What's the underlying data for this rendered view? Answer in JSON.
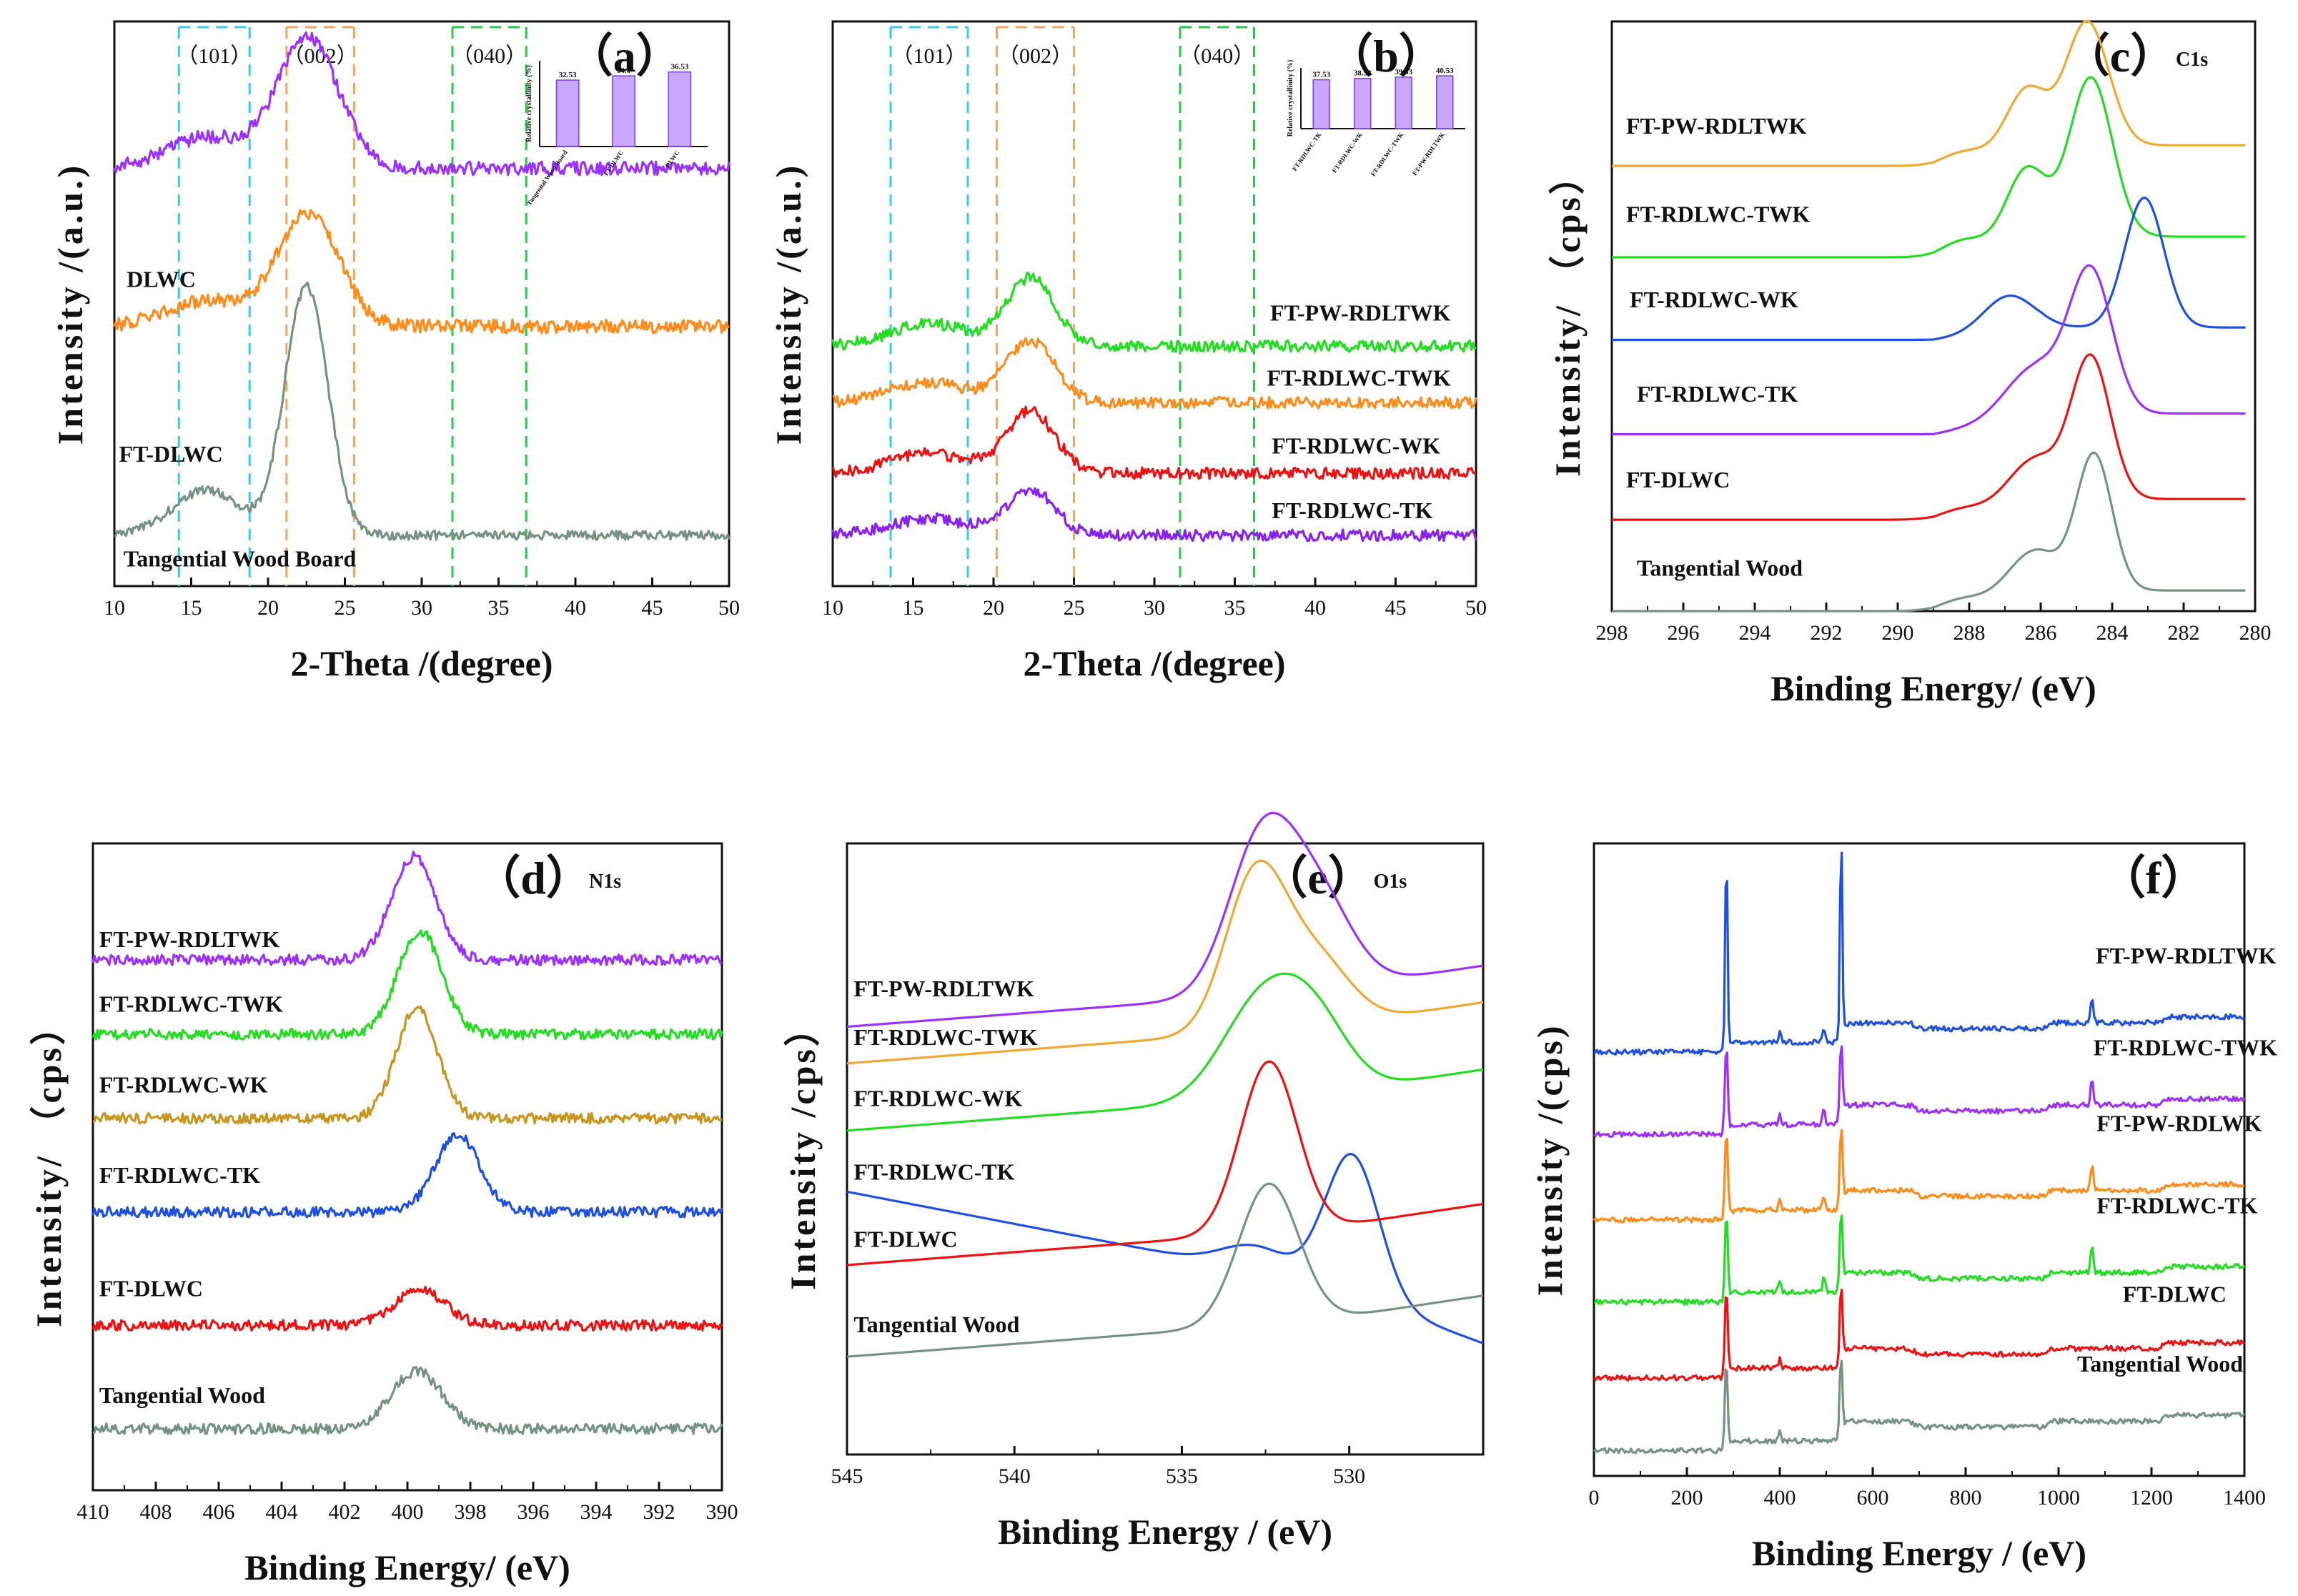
{
  "chart_data": [
    {
      "id": "a",
      "type": "line",
      "panel_label": "（a）",
      "spectrum": "xrd",
      "xlabel": "2-Theta  /(degree)",
      "ylabel": "Intensity  /(a.u.)",
      "xlim": [
        10,
        50
      ],
      "xticks": [
        10,
        15,
        20,
        25,
        30,
        35,
        40,
        45,
        50
      ],
      "reverse_x": false,
      "grid": false,
      "regions": [
        {
          "label": "（101）",
          "from": 14.2,
          "to": 18.8,
          "color": "#33ccee"
        },
        {
          "label": "（002）",
          "from": 21.2,
          "to": 25.6,
          "color": "#f4a460"
        },
        {
          "label": "（040）",
          "from": 32.0,
          "to": 36.8,
          "color": "#22cc44"
        }
      ],
      "series": [
        {
          "name": "",
          "color": "#9b30ff",
          "baseline": 0.26,
          "noise": 0.012,
          "slope": 0.0,
          "peaks": [
            [
              16.0,
              2.6,
              0.055
            ],
            [
              22.6,
              2.0,
              0.23
            ]
          ]
        },
        {
          "name": "DLWC",
          "color": "#ff8c1a",
          "baseline": 0.54,
          "noise": 0.012,
          "slope": 0.0,
          "peaks": [
            [
              16.0,
              2.6,
              0.045
            ],
            [
              22.6,
              2.0,
              0.2
            ]
          ]
        },
        {
          "name": "FT-DLWC",
          "color": "rainbow",
          "baseline": 0.91,
          "noise": 0.008,
          "slope": 0.0,
          "peaks": [
            [
              16.0,
              2.2,
              0.08
            ],
            [
              22.5,
              1.4,
              0.44
            ]
          ]
        }
      ],
      "series_labels": [
        {
          "text": "DLWC",
          "x": 10.8,
          "y": 0.47
        },
        {
          "text": "FT-DLWC",
          "x": 10.3,
          "y": 0.78
        },
        {
          "text": "Tangential Wood Board",
          "x": 10.6,
          "y": 0.965
        }
      ],
      "inset": {
        "ylabel": "Relative crystallinity (%)",
        "categories": [
          "Tangential Wood Board",
          "FT-DLWC",
          "DLWC"
        ],
        "values": [
          32.53,
          34.6,
          36.53
        ],
        "value_labels": [
          "32.53",
          "34.6",
          "36.53"
        ]
      }
    },
    {
      "id": "b",
      "type": "line",
      "panel_label": "（b）",
      "spectrum": "xrd",
      "xlabel": "2-Theta  /(degree)",
      "ylabel": "Intensity  /(a.u.)",
      "xlim": [
        10,
        50
      ],
      "xticks": [
        10,
        15,
        20,
        25,
        30,
        35,
        40,
        45,
        50
      ],
      "reverse_x": false,
      "grid": false,
      "regions": [
        {
          "label": "（101）",
          "from": 13.6,
          "to": 18.4,
          "color": "#33ccee"
        },
        {
          "label": "（002）",
          "from": 20.2,
          "to": 25.0,
          "color": "#f4a460"
        },
        {
          "label": "（040）",
          "from": 31.6,
          "to": 36.2,
          "color": "#22cc44"
        }
      ],
      "series": [
        {
          "name": "FT-PW-RDLTWK",
          "color": "#22dd22",
          "baseline": 0.575,
          "noise": 0.01,
          "slope": 0.0,
          "peaks": [
            [
              16.0,
              2.4,
              0.04
            ],
            [
              22.3,
              1.5,
              0.12
            ]
          ]
        },
        {
          "name": "FT-RDLWC-TWK",
          "color": "#ff8c1a",
          "baseline": 0.675,
          "noise": 0.01,
          "slope": 0.0,
          "peaks": [
            [
              16.0,
              2.4,
              0.035
            ],
            [
              22.3,
              1.5,
              0.11
            ]
          ]
        },
        {
          "name": "FT-RDLWC-WK",
          "color": "#ee1111",
          "baseline": 0.8,
          "noise": 0.01,
          "slope": 0.0,
          "peaks": [
            [
              16.0,
              2.4,
              0.035
            ],
            [
              22.3,
              1.5,
              0.11
            ]
          ]
        },
        {
          "name": "FT-RDLWC-TK",
          "color": "#8822ee",
          "baseline": 0.91,
          "noise": 0.01,
          "slope": 0.0,
          "peaks": [
            [
              16.0,
              2.4,
              0.03
            ],
            [
              22.3,
              1.5,
              0.08
            ]
          ]
        }
      ],
      "series_labels": [
        {
          "text": "FT-PW-RDLTWK",
          "x": 37.2,
          "y": 0.53
        },
        {
          "text": "FT-RDLWC-TWK",
          "x": 37.0,
          "y": 0.645
        },
        {
          "text": "FT-RDLWC-WK",
          "x": 37.3,
          "y": 0.765
        },
        {
          "text": "FT-RDLWC-TK",
          "x": 37.3,
          "y": 0.88
        }
      ],
      "inset": {
        "ylabel": "Relative crystallinity (%)",
        "categories": [
          "FT-RDLWC-TK",
          "FT-RDLWC-WK",
          "FT-RDLWC-TWK",
          "FT-PW-RDLTWK"
        ],
        "values": [
          37.53,
          38.53,
          39.53,
          40.53
        ],
        "value_labels": [
          "37.53",
          "38.53",
          "39.53",
          "40.53"
        ]
      }
    },
    {
      "id": "c",
      "type": "line",
      "panel_label": "（c）",
      "subtitle": "C1s",
      "spectrum": "xps",
      "xlabel": "Binding Energy/ (eV)",
      "ylabel": "Intensity/ （cps）",
      "xlim": [
        298,
        280
      ],
      "xticks": [
        298,
        296,
        294,
        292,
        290,
        288,
        286,
        284,
        282,
        280
      ],
      "reverse_x": true,
      "grid": false,
      "series": [
        {
          "name": "FT-PW-RDLTWK",
          "color": "#f0a830",
          "baseline": 0.245,
          "noise": 0.0,
          "slope": 0.0,
          "xmax_frac": 0.985,
          "peaks": [
            [
              288.2,
              0.6,
              0.015
            ],
            [
              286.4,
              0.55,
              0.1
            ],
            [
              284.7,
              0.6,
              0.21
            ]
          ]
        },
        {
          "name": "FT-RDLWC-TWK",
          "color": "#22dd22",
          "baseline": 0.4,
          "noise": 0.0,
          "slope": 0.0,
          "xmax_frac": 0.985,
          "peaks": [
            [
              288.2,
              0.6,
              0.02
            ],
            [
              286.4,
              0.55,
              0.12
            ],
            [
              284.6,
              0.6,
              0.27
            ]
          ]
        },
        {
          "name": "FT-RDLWC-WK",
          "color": "#1f4fe0",
          "baseline": 0.54,
          "noise": 0.0,
          "slope": 0.0,
          "xmax_frac": 0.985,
          "peaks": [
            [
              286.9,
              0.7,
              0.06
            ],
            [
              283.1,
              0.55,
              0.22
            ]
          ]
        },
        {
          "name": "FT-RDLWC-TK",
          "color": "#9b30ff",
          "baseline": 0.7,
          "noise": 0.0,
          "slope": 0.0,
          "xmax_frac": 0.985,
          "peaks": [
            [
              286.2,
              0.8,
              0.08
            ],
            [
              284.6,
              0.6,
              0.24
            ]
          ]
        },
        {
          "name": "FT-DLWC",
          "color": "#ee1111",
          "baseline": 0.845,
          "noise": 0.0,
          "slope": 0.0,
          "xmax_frac": 0.985,
          "peaks": [
            [
              288.3,
              0.6,
              0.01
            ],
            [
              286.2,
              0.7,
              0.07
            ],
            [
              284.6,
              0.55,
              0.24
            ]
          ]
        },
        {
          "name": "Tangential Wood",
          "color": "rainbow",
          "baseline": 1.0,
          "noise": 0.0,
          "slope": 0.0,
          "xmax_frac": 0.985,
          "peaks": [
            [
              288.3,
              0.6,
              0.012
            ],
            [
              286.2,
              0.7,
              0.07
            ],
            [
              284.5,
              0.5,
              0.23
            ]
          ]
        }
      ],
      "series_labels": [
        {
          "text": "FT-PW-RDLTWK",
          "x": 297.6,
          "y": 0.19
        },
        {
          "text": "FT-RDLWC-TWK",
          "x": 297.6,
          "y": 0.34
        },
        {
          "text": "FT-RDLWC-WK",
          "x": 297.5,
          "y": 0.485
        },
        {
          "text": "FT-RDLWC-TK",
          "x": 297.3,
          "y": 0.645
        },
        {
          "text": "FT-DLWC",
          "x": 297.6,
          "y": 0.79
        },
        {
          "text": "Tangential Wood",
          "x": 297.3,
          "y": 0.94
        }
      ]
    },
    {
      "id": "d",
      "type": "line",
      "panel_label": "（d）",
      "subtitle": "N1s",
      "spectrum": "xps",
      "xlabel": "Binding Energy/ (eV)",
      "ylabel": "Intensity/ （cps）",
      "xlim": [
        410,
        390
      ],
      "xticks": [
        410,
        408,
        406,
        404,
        402,
        400,
        398,
        396,
        394,
        392,
        390
      ],
      "reverse_x": true,
      "grid": false,
      "series": [
        {
          "name": "FT-PW-RDLTWK",
          "color": "#9b30ff",
          "baseline": 0.18,
          "noise": 0.008,
          "slope": 0.0,
          "peaks": [
            [
              399.8,
              0.7,
              0.16
            ]
          ]
        },
        {
          "name": "FT-RDLWC-TWK",
          "color": "#22dd22",
          "baseline": 0.295,
          "noise": 0.008,
          "slope": 0.0,
          "peaks": [
            [
              399.6,
              0.7,
              0.16
            ]
          ]
        },
        {
          "name": "FT-RDLWC-WK",
          "color": "#c8961e",
          "baseline": 0.425,
          "noise": 0.008,
          "slope": 0.0,
          "peaks": [
            [
              399.7,
              0.65,
              0.17
            ]
          ]
        },
        {
          "name": "FT-RDLWC-TK",
          "color": "#1f4fe0",
          "baseline": 0.57,
          "noise": 0.008,
          "slope": 0.0,
          "peaks": [
            [
              398.4,
              0.7,
              0.12
            ]
          ]
        },
        {
          "name": "FT-DLWC",
          "color": "#ee1111",
          "baseline": 0.745,
          "noise": 0.008,
          "slope": 0.0,
          "peaks": [
            [
              399.6,
              0.8,
              0.055
            ]
          ]
        },
        {
          "name": "Tangential Wood",
          "color": "rainbow",
          "baseline": 0.905,
          "noise": 0.008,
          "slope": 0.0,
          "peaks": [
            [
              399.7,
              0.8,
              0.09
            ]
          ]
        }
      ],
      "series_labels": [
        {
          "text": "FT-PW-RDLTWK",
          "x": 409.8,
          "y": 0.16
        },
        {
          "text": "FT-RDLWC-TWK",
          "x": 409.8,
          "y": 0.26
        },
        {
          "text": "FT-RDLWC-WK",
          "x": 409.8,
          "y": 0.385
        },
        {
          "text": "FT-RDLWC-TK",
          "x": 409.8,
          "y": 0.525
        },
        {
          "text": "FT-DLWC",
          "x": 409.8,
          "y": 0.7
        },
        {
          "text": "Tangential Wood",
          "x": 409.8,
          "y": 0.865
        }
      ]
    },
    {
      "id": "e",
      "type": "line",
      "panel_label": "（e）",
      "subtitle": "O1s",
      "spectrum": "xps",
      "xlabel": "Binding Energy  / (eV)",
      "ylabel": "Intensity  /cps）",
      "xlim": [
        545,
        526
      ],
      "xticks": [
        545,
        540,
        535,
        530
      ],
      "reverse_x": true,
      "grid": false,
      "series": [
        {
          "name": "FT-PW-RDLTWK",
          "color": "#9b30ff",
          "baseline": 0.3,
          "noise": 0.0,
          "slope": -0.0008,
          "peaks": [
            [
              532.6,
              1.0,
              0.255
            ],
            [
              530.9,
              1.0,
              0.14
            ]
          ]
        },
        {
          "name": "FT-RDLWC-TWK",
          "color": "#f0a830",
          "baseline": 0.36,
          "noise": 0.0,
          "slope": -0.0008,
          "peaks": [
            [
              532.8,
              0.9,
              0.255
            ],
            [
              531.0,
              1.0,
              0.11
            ]
          ]
        },
        {
          "name": "FT-RDLWC-WK",
          "color": "#22dd22",
          "baseline": 0.47,
          "noise": 0.0,
          "slope": -0.0008,
          "peaks": [
            [
              532.6,
              1.2,
              0.16
            ],
            [
              531.0,
              1.0,
              0.1
            ]
          ]
        },
        {
          "name": "FT-RDLWC-TK",
          "color": "#1f4fe0",
          "baseline": 0.57,
          "noise": 0.0,
          "slope": 0.002,
          "peaks": [
            [
              532.8,
              1.0,
              0.04
            ],
            [
              529.9,
              0.8,
              0.23
            ]
          ]
        },
        {
          "name": "FT-DLWC",
          "color": "#ee1111",
          "baseline": 0.69,
          "noise": 0.0,
          "slope": -0.0008,
          "peaks": [
            [
              532.4,
              0.85,
              0.28
            ]
          ]
        },
        {
          "name": "Tangential Wood",
          "color": "rainbow",
          "baseline": 0.84,
          "noise": 0.0,
          "slope": -0.0008,
          "peaks": [
            [
              532.4,
              0.9,
              0.23
            ]
          ]
        }
      ],
      "series_labels": [
        {
          "text": "FT-PW-RDLTWK",
          "x": 544.8,
          "y": 0.25
        },
        {
          "text": "FT-RDLWC-TWK",
          "x": 544.8,
          "y": 0.33
        },
        {
          "text": "FT-RDLWC-WK",
          "x": 544.8,
          "y": 0.43
        },
        {
          "text": "FT-RDLWC-TK",
          "x": 544.8,
          "y": 0.55
        },
        {
          "text": "FT-DLWC",
          "x": 544.8,
          "y": 0.66
        },
        {
          "text": "Tangential Wood",
          "x": 544.8,
          "y": 0.8
        }
      ]
    },
    {
      "id": "f",
      "type": "line",
      "panel_label": "（f）",
      "spectrum": "survey",
      "xlabel": "Binding Energy  / (eV)",
      "ylabel": "Intensity  /(cps)",
      "xlim": [
        0,
        1400
      ],
      "xticks": [
        0,
        200,
        400,
        600,
        800,
        1000,
        1200,
        1400
      ],
      "reverse_x": false,
      "grid": false,
      "series": [
        {
          "name": "FT-PW-RDLTWK",
          "color": "#1f4fe0",
          "baseline": 0.33
        },
        {
          "name": "FT-RDLWC-TWK",
          "color": "#9b30ff",
          "baseline": 0.46
        },
        {
          "name": "FT-PW-RDLWK",
          "color": "#ff8c1a",
          "baseline": 0.595
        },
        {
          "name": "FT-RDLWC-TK",
          "color": "#22dd22",
          "baseline": 0.725
        },
        {
          "name": "FT-DLWC",
          "color": "#ee1111",
          "baseline": 0.845
        },
        {
          "name": "Tangential Wood",
          "color": "rainbow",
          "baseline": 0.96
        }
      ],
      "series_labels": [
        {
          "text": "FT-PW-RDLTWK",
          "x": 1080,
          "y": 0.19
        },
        {
          "text": "FT-RDLWC-TWK",
          "x": 1075,
          "y": 0.335
        },
        {
          "text": "FT-PW-RDLWK",
          "x": 1082,
          "y": 0.455
        },
        {
          "text": "FT-RDLWC-TK",
          "x": 1082,
          "y": 0.585
        },
        {
          "text": "FT-DLWC",
          "x": 1138,
          "y": 0.725
        },
        {
          "text": "Tangential Wood",
          "x": 1040,
          "y": 0.835
        }
      ]
    }
  ]
}
